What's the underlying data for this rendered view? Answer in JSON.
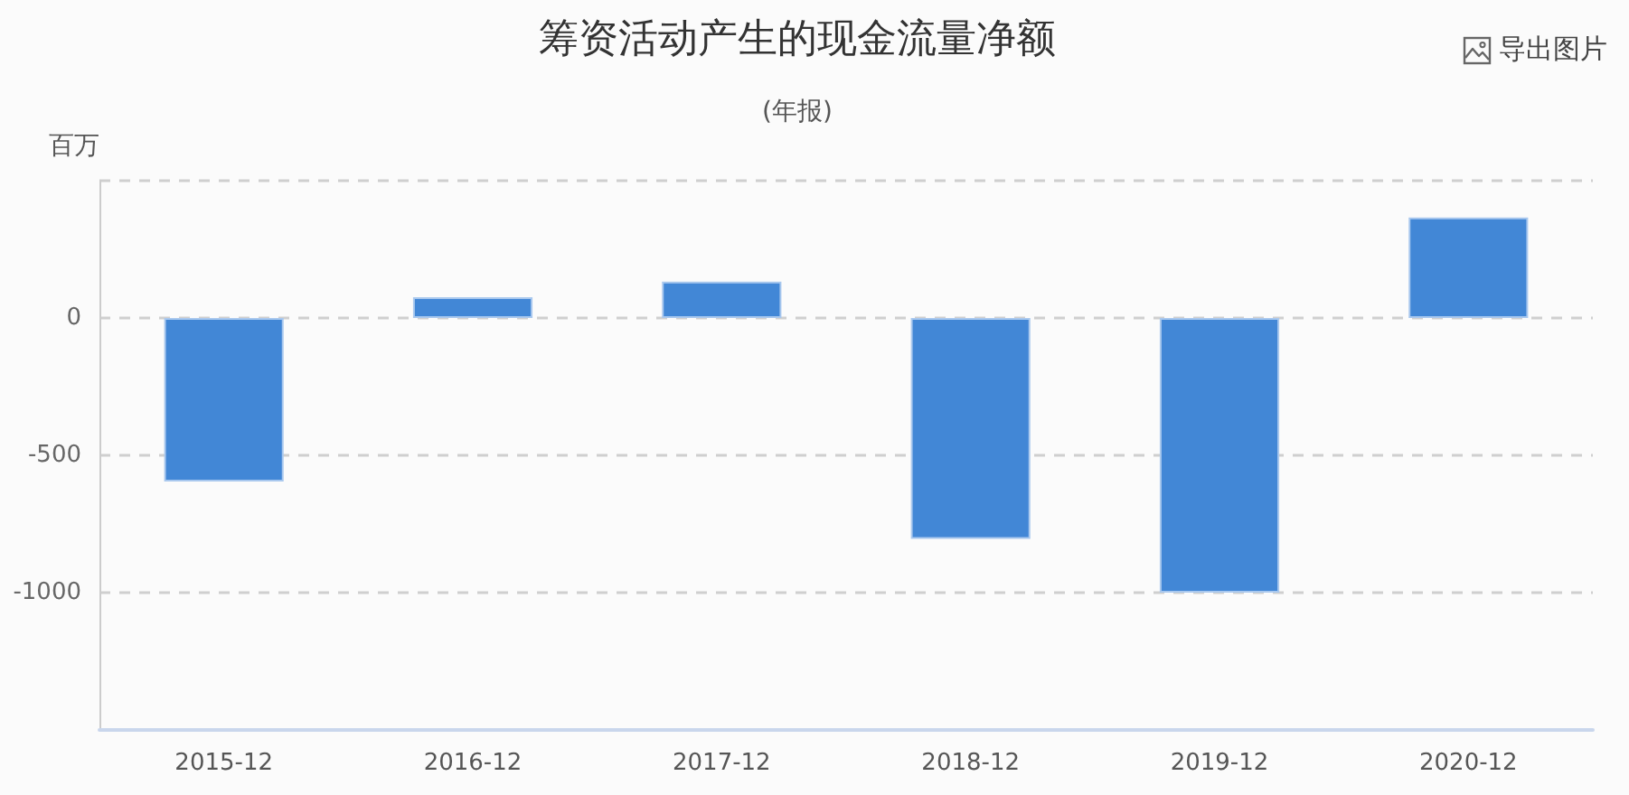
{
  "chart_data": {
    "type": "bar",
    "title": "筹资活动产生的现金流量净额",
    "subtitle": "(年报)",
    "ylabel": "百万",
    "categories": [
      "2015-12",
      "2016-12",
      "2017-12",
      "2018-12",
      "2019-12",
      "2020-12"
    ],
    "values": [
      -595,
      76,
      132,
      -804,
      -1000,
      366
    ],
    "color": "#4287d6",
    "ylim": [
      -1500,
      500
    ],
    "yticks": [
      {
        "value": -1500,
        "label": null
      },
      -1000,
      -500,
      0,
      {
        "value": 500,
        "label": null
      }
    ],
    "grid": "y",
    "annotations": [
      "导出图片"
    ]
  }
}
